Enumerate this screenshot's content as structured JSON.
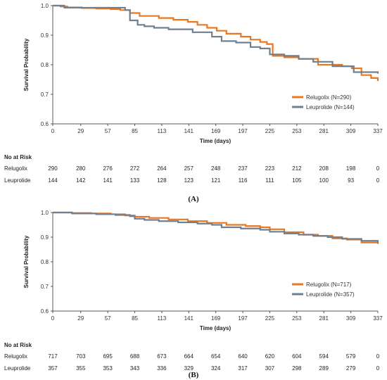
{
  "colors": {
    "relugolix": "#E87722",
    "leuprolide": "#6F7F8F",
    "axis": "#555555"
  },
  "chart_data": [
    {
      "type": "line",
      "panel_label": "(A)",
      "xlabel": "Time (days)",
      "ylabel": "Survival Probability",
      "xlim": [
        0,
        337
      ],
      "ylim": [
        0.6,
        1.0
      ],
      "x_ticks": [
        0,
        29,
        57,
        85,
        113,
        141,
        169,
        197,
        225,
        253,
        281,
        309,
        337
      ],
      "y_ticks": [
        "0.6",
        "0.7",
        "0.8",
        "0.9",
        "1.0"
      ],
      "legend_position": "bottom-right",
      "series": [
        {
          "name": "Relugolix (N=290)",
          "key": "relugolix",
          "x": [
            0,
            8,
            15,
            30,
            45,
            60,
            70,
            80,
            90,
            110,
            125,
            140,
            150,
            160,
            170,
            180,
            195,
            205,
            215,
            222,
            228,
            240,
            255,
            275,
            300,
            310,
            320,
            330,
            337
          ],
          "y": [
            1.0,
            0.997,
            0.994,
            0.992,
            0.99,
            0.988,
            0.985,
            0.975,
            0.965,
            0.958,
            0.952,
            0.945,
            0.935,
            0.925,
            0.915,
            0.905,
            0.895,
            0.885,
            0.877,
            0.87,
            0.83,
            0.825,
            0.82,
            0.8,
            0.795,
            0.788,
            0.765,
            0.755,
            0.745
          ]
        },
        {
          "name": "Leuprolide (N=144)",
          "key": "leuprolide",
          "x": [
            0,
            12,
            30,
            55,
            75,
            80,
            88,
            95,
            105,
            120,
            145,
            165,
            175,
            190,
            205,
            215,
            225,
            240,
            255,
            270,
            290,
            312,
            337
          ],
          "y": [
            1.0,
            0.993,
            0.993,
            0.993,
            0.985,
            0.95,
            0.935,
            0.93,
            0.925,
            0.92,
            0.91,
            0.895,
            0.88,
            0.875,
            0.86,
            0.855,
            0.835,
            0.83,
            0.82,
            0.81,
            0.795,
            0.775,
            0.77
          ]
        }
      ],
      "risk_table": {
        "title": "No at Risk",
        "rows": [
          {
            "label": "Relugolix",
            "values": [
              "290",
              "280",
              "276",
              "272",
              "264",
              "257",
              "248",
              "237",
              "223",
              "212",
              "208",
              "198",
              "0"
            ]
          },
          {
            "label": "Leuprolide",
            "values": [
              "144",
              "142",
              "141",
              "133",
              "128",
              "123",
              "121",
              "116",
              "111",
              "105",
              "100",
              "93",
              "0"
            ]
          }
        ]
      }
    },
    {
      "type": "line",
      "panel_label": "(B)",
      "xlabel": "Time (days)",
      "ylabel": "Survival Probability",
      "xlim": [
        0,
        337
      ],
      "ylim": [
        0.6,
        1.0
      ],
      "x_ticks": [
        0,
        29,
        57,
        85,
        113,
        141,
        169,
        197,
        225,
        253,
        281,
        309,
        337
      ],
      "y_ticks": [
        "0.6",
        "0.7",
        "0.8",
        "0.9",
        "1.0"
      ],
      "legend_position": "bottom-right",
      "series": [
        {
          "name": "Relugolix (N=717)",
          "key": "relugolix",
          "x": [
            0,
            20,
            40,
            60,
            75,
            85,
            100,
            120,
            140,
            160,
            180,
            200,
            215,
            225,
            240,
            260,
            275,
            290,
            305,
            320,
            337
          ],
          "y": [
            1.0,
            0.998,
            0.996,
            0.993,
            0.988,
            0.983,
            0.978,
            0.972,
            0.965,
            0.958,
            0.95,
            0.945,
            0.94,
            0.932,
            0.92,
            0.91,
            0.905,
            0.895,
            0.89,
            0.878,
            0.873
          ]
        },
        {
          "name": "Leuprolide (N=357)",
          "key": "leuprolide",
          "x": [
            0,
            20,
            45,
            65,
            80,
            85,
            95,
            110,
            130,
            150,
            165,
            175,
            195,
            215,
            225,
            240,
            255,
            270,
            285,
            300,
            320,
            337
          ],
          "y": [
            1.0,
            0.996,
            0.993,
            0.99,
            0.985,
            0.975,
            0.97,
            0.965,
            0.96,
            0.955,
            0.95,
            0.94,
            0.935,
            0.93,
            0.922,
            0.915,
            0.91,
            0.905,
            0.9,
            0.893,
            0.885,
            0.875
          ]
        }
      ],
      "risk_table": {
        "title": "No at Risk",
        "rows": [
          {
            "label": "Relugolix",
            "values": [
              "717",
              "703",
              "695",
              "688",
              "673",
              "664",
              "654",
              "640",
              "620",
              "604",
              "594",
              "579",
              "0"
            ]
          },
          {
            "label": "Leuprolide",
            "values": [
              "357",
              "355",
              "353",
              "343",
              "336",
              "329",
              "324",
              "317",
              "307",
              "298",
              "289",
              "279",
              "0"
            ]
          }
        ]
      }
    }
  ]
}
